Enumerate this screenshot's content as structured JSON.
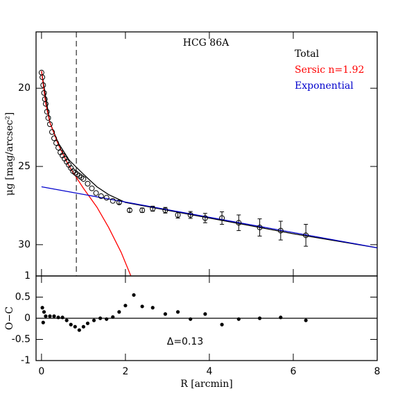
{
  "chart_data": [
    {
      "type": "profile",
      "title": "HCG 86A",
      "ylabel": "μg [mag/arcsec²]",
      "xlim": [
        -0.13,
        8
      ],
      "xticks": [
        0,
        2,
        4,
        6,
        8
      ],
      "ylim": [
        32,
        16.4
      ],
      "yticks": [
        20,
        25,
        30
      ],
      "vline": 0.83,
      "legend": "upper right",
      "points": {
        "color": "#000000",
        "x": [
          0,
          0.02,
          0.04,
          0.06,
          0.08,
          0.1,
          0.13,
          0.16,
          0.2,
          0.25,
          0.3,
          0.35,
          0.4,
          0.45,
          0.5,
          0.55,
          0.6,
          0.65,
          0.7,
          0.75,
          0.8,
          0.85,
          0.9,
          0.95,
          1.0,
          1.1,
          1.2,
          1.3,
          1.42,
          1.55,
          1.7,
          1.85,
          2.1,
          2.4,
          2.65,
          2.95,
          3.25,
          3.55,
          3.9,
          4.3,
          4.7,
          5.2,
          5.7,
          6.3
        ],
        "values": [
          19.0,
          19.3,
          19.8,
          20.3,
          20.7,
          21.0,
          21.5,
          21.9,
          22.3,
          22.8,
          23.2,
          23.5,
          23.8,
          24.1,
          24.3,
          24.5,
          24.7,
          24.9,
          25.1,
          25.3,
          25.4,
          25.5,
          25.6,
          25.7,
          25.8,
          26.1,
          26.4,
          26.7,
          26.9,
          27.0,
          27.2,
          27.3,
          27.8,
          27.8,
          27.7,
          27.8,
          28.1,
          28.1,
          28.3,
          28.3,
          28.6,
          28.9,
          29.1,
          29.4
        ],
        "errors": [
          0.02,
          0.02,
          0.02,
          0.02,
          0.02,
          0.02,
          0.02,
          0.02,
          0.02,
          0.02,
          0.02,
          0.02,
          0.02,
          0.02,
          0.02,
          0.02,
          0.03,
          0.03,
          0.03,
          0.03,
          0.03,
          0.03,
          0.04,
          0.04,
          0.04,
          0.05,
          0.05,
          0.06,
          0.06,
          0.07,
          0.08,
          0.1,
          0.12,
          0.14,
          0.16,
          0.18,
          0.2,
          0.22,
          0.3,
          0.4,
          0.5,
          0.55,
          0.6,
          0.7
        ]
      },
      "series": [
        {
          "name": "Total",
          "color": "#000000",
          "x": [
            0,
            0.2,
            0.4,
            0.66,
            1.0,
            1.32,
            1.6,
            2,
            3,
            4,
            5,
            6,
            8
          ],
          "values": [
            18.9,
            22.2,
            23.5,
            24.6,
            25.5,
            26.3,
            26.8,
            27.3,
            27.8,
            28.3,
            28.8,
            29.3,
            30.2
          ]
        },
        {
          "name": "Sersic n=1.92",
          "color": "#ff0000",
          "x": [
            0,
            0.1,
            0.2,
            0.4,
            0.66,
            1.0,
            1.32,
            1.6,
            1.9,
            2.13
          ],
          "values": [
            18.9,
            21.0,
            22.2,
            23.6,
            25.0,
            26.4,
            27.6,
            28.9,
            30.5,
            32
          ]
        },
        {
          "name": "Exponential",
          "color": "#0000cc",
          "x": [
            0,
            8
          ],
          "values": [
            26.3,
            30.2
          ]
        }
      ]
    },
    {
      "type": "residual",
      "ylabel": "O−C",
      "xlabel": "R [arcmin]",
      "annotation": "Δ=0.13",
      "xlim": [
        -0.13,
        8
      ],
      "xticks": [
        0,
        2,
        4,
        6,
        8
      ],
      "ylim": [
        -1,
        1
      ],
      "yticks": [
        -1,
        -0.5,
        0,
        0.5,
        1
      ],
      "hline": 0,
      "color": "#000000",
      "x": [
        0.02,
        0.04,
        0.06,
        0.1,
        0.2,
        0.3,
        0.4,
        0.5,
        0.6,
        0.7,
        0.8,
        0.9,
        1.0,
        1.1,
        1.25,
        1.4,
        1.55,
        1.7,
        1.85,
        2.0,
        2.2,
        2.4,
        2.65,
        2.95,
        3.25,
        3.55,
        3.9,
        4.3,
        4.7,
        5.2,
        5.7,
        6.3
      ],
      "values": [
        0.25,
        -0.1,
        0.15,
        0.05,
        0.05,
        0.05,
        0.02,
        0.02,
        -0.05,
        -0.15,
        -0.2,
        -0.28,
        -0.2,
        -0.12,
        -0.05,
        0,
        -0.02,
        0.03,
        0.15,
        0.3,
        0.55,
        0.28,
        0.25,
        0.1,
        0.15,
        -0.02,
        0.1,
        -0.15,
        -0.02,
        0,
        0.02,
        -0.05
      ]
    }
  ]
}
